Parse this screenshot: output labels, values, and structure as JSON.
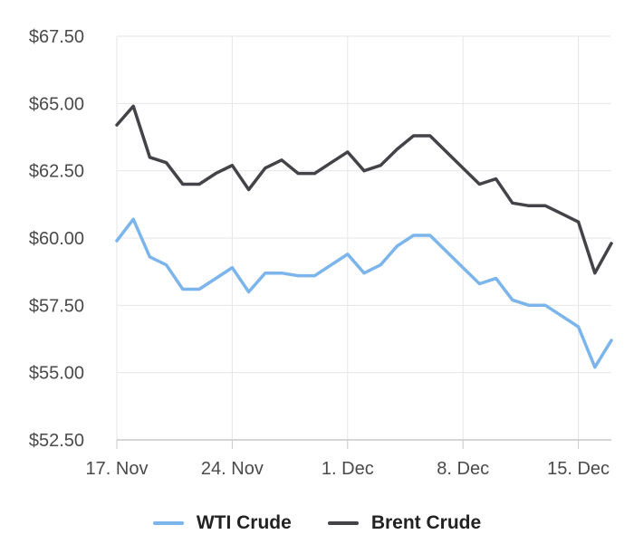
{
  "chart_data": {
    "type": "line",
    "x": [
      "17. Nov",
      "18. Nov",
      "19. Nov",
      "20. Nov",
      "21. Nov",
      "22. Nov",
      "23. Nov",
      "24. Nov",
      "25. Nov",
      "26. Nov",
      "27. Nov",
      "28. Nov",
      "29. Nov",
      "30. Nov",
      "1. Dec",
      "2. Dec",
      "3. Dec",
      "4. Dec",
      "5. Dec",
      "6. Dec",
      "7. Dec",
      "8. Dec",
      "9. Dec",
      "10. Dec",
      "11. Dec",
      "12. Dec",
      "13. Dec",
      "14. Dec",
      "15. Dec",
      "16. Dec",
      "17. Dec"
    ],
    "x_ticks": [
      "17. Nov",
      "24. Nov",
      "1. Dec",
      "8. Dec",
      "15. Dec"
    ],
    "y_ticks": [
      "$52.50",
      "$55.00",
      "$57.50",
      "$60.00",
      "$62.50",
      "$65.00",
      "$67.50"
    ],
    "ylim": [
      52.5,
      67.5
    ],
    "grid": true,
    "legend_position": "bottom-center",
    "series": [
      {
        "name": "WTI Crude",
        "color": "#7cb5ec",
        "values": [
          59.9,
          60.7,
          59.3,
          59.0,
          58.1,
          58.1,
          58.5,
          58.9,
          58.0,
          58.7,
          58.7,
          58.6,
          58.6,
          59.0,
          59.4,
          58.7,
          59.0,
          59.7,
          60.1,
          60.1,
          59.5,
          58.9,
          58.3,
          58.5,
          57.7,
          57.5,
          57.5,
          57.1,
          56.7,
          55.2,
          56.2
        ]
      },
      {
        "name": "Brent Crude",
        "color": "#434348",
        "values": [
          64.2,
          64.9,
          63.0,
          62.8,
          62.0,
          62.0,
          62.4,
          62.7,
          61.8,
          62.6,
          62.9,
          62.4,
          62.4,
          62.8,
          63.2,
          62.5,
          62.7,
          63.3,
          63.8,
          63.8,
          63.2,
          62.6,
          62.0,
          62.2,
          61.3,
          61.2,
          61.2,
          60.9,
          60.6,
          58.7,
          59.8
        ]
      }
    ]
  }
}
